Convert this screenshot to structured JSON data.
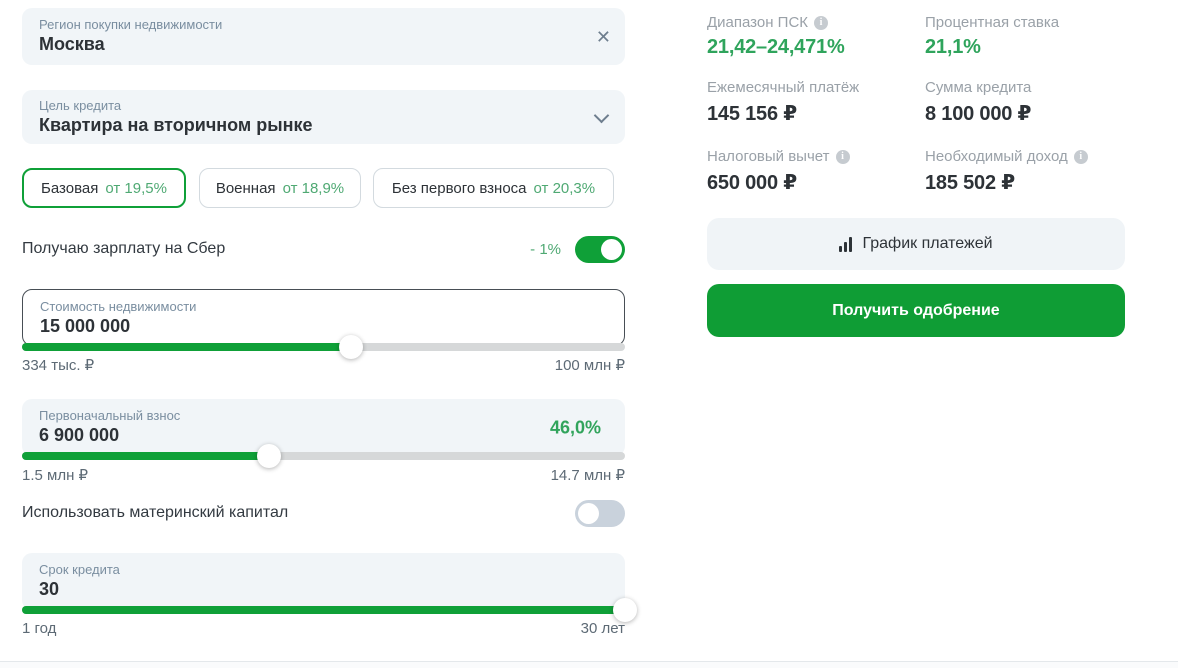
{
  "colors": {
    "green_primary": "#0fa038",
    "green_value_text": "#2fa45c",
    "green_soft_text": "#4fa973",
    "field_background": "#f1f5f8",
    "track_gray": "#d6d8d9",
    "label_gray_blue": "#7a8ea0",
    "summary_label_gray": "#9aa1a8",
    "dark_text": "#2d3237"
  },
  "form": {
    "region": {
      "label": "Регион покупки недвижимости",
      "value": "Москва"
    },
    "purpose": {
      "label": "Цель кредита",
      "value": "Квартира на вторичном рынке"
    },
    "programs": [
      {
        "label": "Базовая",
        "rate": "от 19,5%",
        "selected": true
      },
      {
        "label": "Военная",
        "rate": "от 18,9%",
        "selected": false
      },
      {
        "label": "Без первого взноса",
        "rate": "от 20,3%",
        "selected": false
      }
    ],
    "salary_toggle": {
      "label": "Получаю зарплату на Сбер",
      "discount": "- 1%",
      "on": true
    },
    "property_value": {
      "label": "Стоимость недвижимости",
      "value": "15 000 000",
      "min": "334 тыс. ₽",
      "max": "100 млн ₽",
      "slider_percent": 54.5
    },
    "down_payment": {
      "label": "Первоначальный взнос",
      "value": "6 900 000",
      "share": "46,0%",
      "min": "1.5 млн ₽",
      "max": "14.7 млн ₽",
      "slider_percent": 41
    },
    "maternity_toggle": {
      "label": "Использовать материнский капитал",
      "on": false
    },
    "term": {
      "label": "Срок кредита",
      "value": "30",
      "min": "1 год",
      "max": "30 лет",
      "slider_percent": 100
    }
  },
  "summary": {
    "items": [
      {
        "label": "Диапазон ПСК",
        "value": "21,42–24,471%"
      },
      {
        "label": "Процентная ставка",
        "value": "21,1%"
      },
      {
        "label": "Ежемесячный платёж",
        "value": "145 156 ₽"
      },
      {
        "label": "Сумма кредита",
        "value": "8 100 000 ₽"
      },
      {
        "label": "Налоговый вычет",
        "value": "650 000 ₽"
      },
      {
        "label": "Необходимый доход",
        "value": "185 502 ₽"
      }
    ],
    "schedule_button": "График платежей",
    "approve_button": "Получить одобрение"
  }
}
